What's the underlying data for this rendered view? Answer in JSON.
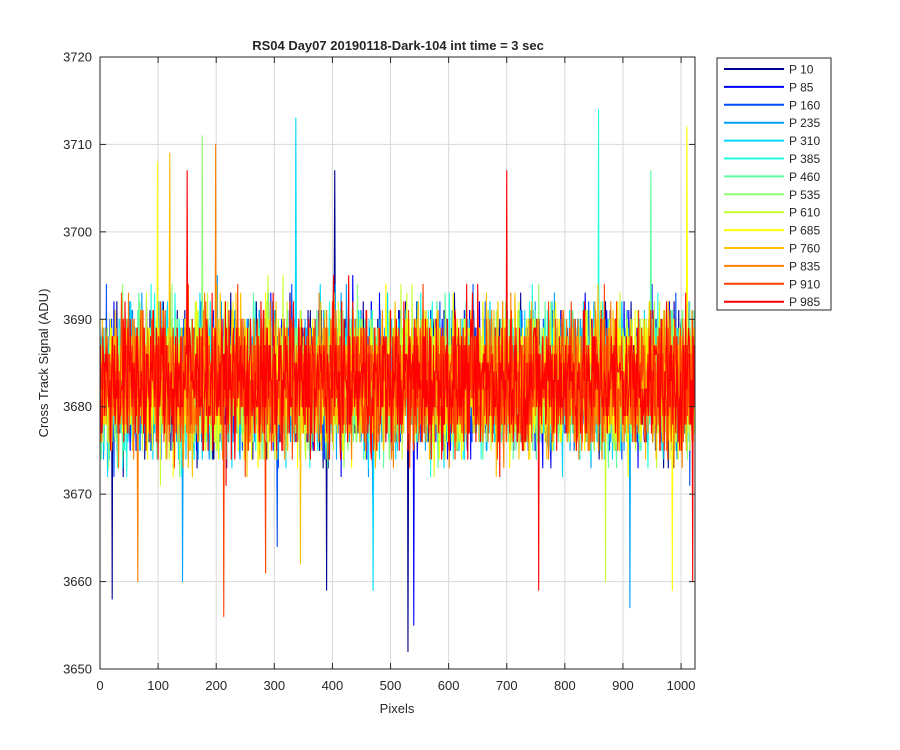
{
  "chart_data": {
    "type": "line",
    "title": "RS04 Day07 20190118-Dark-104 int time = 3 sec",
    "xlabel": "Pixels",
    "ylabel": "Cross Track Signal (ADU)",
    "xlim": [
      0,
      1024
    ],
    "ylim": [
      3650,
      3720
    ],
    "x_ticks": [
      0,
      100,
      200,
      300,
      400,
      500,
      600,
      700,
      800,
      900,
      1000
    ],
    "y_ticks": [
      3650,
      3660,
      3670,
      3680,
      3690,
      3700,
      3710,
      3720
    ],
    "grid": true,
    "legend_position": "outside-right",
    "n_points": 1024,
    "series": [
      {
        "name": "P 10",
        "color": "#00008f",
        "mean": 3683,
        "spread": 9,
        "outliers": [
          [
            21,
            3658
          ],
          [
            390,
            3659
          ],
          [
            404,
            3707
          ],
          [
            530,
            3652
          ]
        ]
      },
      {
        "name": "P 85",
        "color": "#0000ff",
        "mean": 3683,
        "spread": 9,
        "outliers": [
          [
            540,
            3655
          ],
          [
            470,
            3667
          ]
        ]
      },
      {
        "name": "P 160",
        "color": "#0050ff",
        "mean": 3683,
        "spread": 9,
        "outliers": [
          [
            305,
            3664
          ]
        ]
      },
      {
        "name": "P 235",
        "color": "#00a0ff",
        "mean": 3683,
        "spread": 9,
        "outliers": [
          [
            142,
            3660
          ],
          [
            912,
            3657
          ]
        ]
      },
      {
        "name": "P 310",
        "color": "#00d8ff",
        "mean": 3683,
        "spread": 9,
        "outliers": [
          [
            337,
            3713
          ],
          [
            470,
            3659
          ]
        ]
      },
      {
        "name": "P 385",
        "color": "#20ffe0",
        "mean": 3683,
        "spread": 9,
        "outliers": [
          [
            858,
            3714
          ]
        ]
      },
      {
        "name": "P 460",
        "color": "#5cffa0",
        "mean": 3683,
        "spread": 9,
        "outliers": [
          [
            948,
            3707
          ]
        ]
      },
      {
        "name": "P 535",
        "color": "#90ff70",
        "mean": 3683,
        "spread": 9,
        "outliers": [
          [
            176,
            3711
          ]
        ]
      },
      {
        "name": "P 610",
        "color": "#c8ff30",
        "mean": 3683,
        "spread": 9,
        "outliers": [
          [
            870,
            3660
          ]
        ]
      },
      {
        "name": "P 685",
        "color": "#ffff00",
        "mean": 3683,
        "spread": 9,
        "outliers": [
          [
            1010,
            3712
          ],
          [
            99,
            3708
          ],
          [
            985,
            3659
          ]
        ]
      },
      {
        "name": "P 760",
        "color": "#ffc000",
        "mean": 3683,
        "spread": 9,
        "outliers": [
          [
            120,
            3709
          ],
          [
            345,
            3662
          ]
        ]
      },
      {
        "name": "P 835",
        "color": "#ff8000",
        "mean": 3683,
        "spread": 9,
        "outliers": [
          [
            199,
            3710
          ],
          [
            65,
            3660
          ]
        ]
      },
      {
        "name": "P 910",
        "color": "#ff4000",
        "mean": 3683,
        "spread": 9,
        "outliers": [
          [
            213,
            3656
          ],
          [
            285,
            3661
          ]
        ]
      },
      {
        "name": "P 985",
        "color": "#ff0000",
        "mean": 3683,
        "spread": 9,
        "outliers": [
          [
            700,
            3707
          ],
          [
            755,
            3659
          ],
          [
            1020,
            3660
          ],
          [
            150,
            3707
          ]
        ]
      }
    ]
  }
}
